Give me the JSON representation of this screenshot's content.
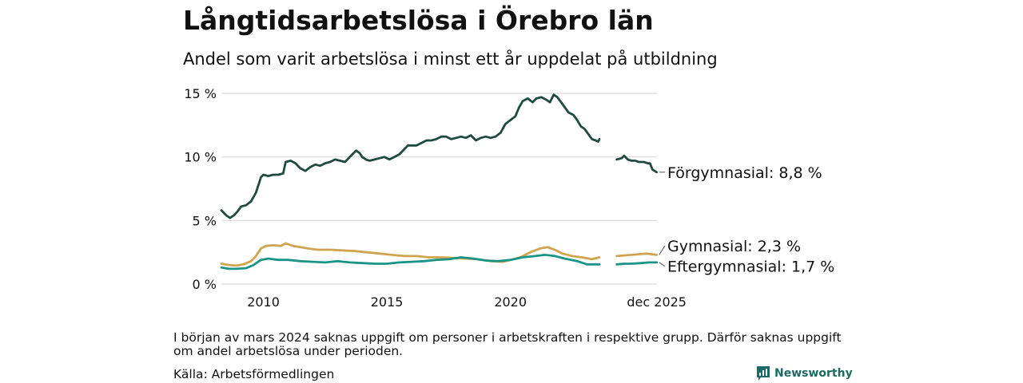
{
  "title": "Långtidsarbetslösa i Örebro län",
  "subtitle": "Andel som varit arbetslösa i minst ett år uppdelat på utbildning",
  "note": "I början av mars 2024 saknas uppgift om personer i arbetskraften i respektive grupp. Därför saknas uppgift om andel arbetslösa under perioden.",
  "source": "Källa: Arbetsförmedlingen",
  "brand": "Newsworthy",
  "colors": {
    "forgymnasial": "#1f4a40",
    "gymnasial": "#d0a350",
    "eftergymnasial": "#1a9486",
    "grid": "#d9d9d9"
  },
  "chart_data": {
    "type": "line",
    "ylim": [
      0,
      15
    ],
    "xlim": [
      2008.3,
      2025.93
    ],
    "y_ticks": [
      0,
      5,
      10,
      15
    ],
    "y_tick_labels": [
      "0 %",
      "5 %",
      "10 %",
      "15 %"
    ],
    "x_ticks": [
      2010,
      2015,
      2020,
      2025.92
    ],
    "x_tick_labels": [
      "2010",
      "2015",
      "2020",
      "dec 2025"
    ],
    "gap": [
      2024.05,
      2024.3
    ],
    "series": [
      {
        "key": "forgymnasial",
        "name": "Förgymnasial",
        "end_label": "Förgymnasial: 8,8 %",
        "points": [
          [
            2008.3,
            5.8
          ],
          [
            2008.5,
            5.4
          ],
          [
            2008.65,
            5.2
          ],
          [
            2008.8,
            5.4
          ],
          [
            2008.95,
            5.7
          ],
          [
            2009.1,
            6.1
          ],
          [
            2009.3,
            6.2
          ],
          [
            2009.5,
            6.5
          ],
          [
            2009.7,
            7.2
          ],
          [
            2009.8,
            7.8
          ],
          [
            2009.9,
            8.4
          ],
          [
            2010.0,
            8.6
          ],
          [
            2010.2,
            8.5
          ],
          [
            2010.4,
            8.6
          ],
          [
            2010.6,
            8.6
          ],
          [
            2010.8,
            8.7
          ],
          [
            2010.9,
            9.6
          ],
          [
            2011.1,
            9.7
          ],
          [
            2011.3,
            9.5
          ],
          [
            2011.5,
            9.1
          ],
          [
            2011.7,
            8.9
          ],
          [
            2011.9,
            9.2
          ],
          [
            2012.1,
            9.4
          ],
          [
            2012.3,
            9.3
          ],
          [
            2012.5,
            9.5
          ],
          [
            2012.7,
            9.6
          ],
          [
            2012.9,
            9.8
          ],
          [
            2013.1,
            9.7
          ],
          [
            2013.3,
            9.6
          ],
          [
            2013.5,
            10.0
          ],
          [
            2013.6,
            10.2
          ],
          [
            2013.75,
            10.5
          ],
          [
            2013.9,
            10.3
          ],
          [
            2014.0,
            10.0
          ],
          [
            2014.15,
            9.8
          ],
          [
            2014.3,
            9.7
          ],
          [
            2014.5,
            9.8
          ],
          [
            2014.7,
            9.9
          ],
          [
            2014.9,
            10.0
          ],
          [
            2015.1,
            9.8
          ],
          [
            2015.3,
            10.0
          ],
          [
            2015.5,
            10.2
          ],
          [
            2015.7,
            10.6
          ],
          [
            2015.85,
            10.9
          ],
          [
            2016.0,
            10.9
          ],
          [
            2016.2,
            10.9
          ],
          [
            2016.4,
            11.1
          ],
          [
            2016.6,
            11.3
          ],
          [
            2016.8,
            11.3
          ],
          [
            2017.0,
            11.4
          ],
          [
            2017.2,
            11.6
          ],
          [
            2017.4,
            11.6
          ],
          [
            2017.6,
            11.4
          ],
          [
            2017.8,
            11.5
          ],
          [
            2018.0,
            11.6
          ],
          [
            2018.2,
            11.5
          ],
          [
            2018.4,
            11.7
          ],
          [
            2018.6,
            11.3
          ],
          [
            2018.8,
            11.5
          ],
          [
            2019.0,
            11.6
          ],
          [
            2019.2,
            11.5
          ],
          [
            2019.4,
            11.6
          ],
          [
            2019.6,
            11.9
          ],
          [
            2019.8,
            12.6
          ],
          [
            2020.0,
            12.9
          ],
          [
            2020.2,
            13.2
          ],
          [
            2020.35,
            13.9
          ],
          [
            2020.5,
            14.4
          ],
          [
            2020.7,
            14.6
          ],
          [
            2020.9,
            14.3
          ],
          [
            2021.05,
            14.6
          ],
          [
            2021.25,
            14.7
          ],
          [
            2021.45,
            14.5
          ],
          [
            2021.6,
            14.3
          ],
          [
            2021.75,
            14.9
          ],
          [
            2021.9,
            14.7
          ],
          [
            2022.05,
            14.3
          ],
          [
            2022.2,
            13.9
          ],
          [
            2022.35,
            13.5
          ],
          [
            2022.55,
            13.3
          ],
          [
            2022.7,
            12.9
          ],
          [
            2022.85,
            12.4
          ],
          [
            2023.0,
            12.2
          ],
          [
            2023.15,
            11.8
          ],
          [
            2023.3,
            11.4
          ],
          [
            2023.45,
            11.3
          ],
          [
            2023.55,
            11.2
          ],
          [
            2023.6,
            11.4
          ],
          null,
          [
            2024.3,
            9.8
          ],
          [
            2024.5,
            9.9
          ],
          [
            2024.6,
            10.1
          ],
          [
            2024.75,
            9.8
          ],
          [
            2024.9,
            9.7
          ],
          [
            2025.05,
            9.7
          ],
          [
            2025.2,
            9.6
          ],
          [
            2025.4,
            9.6
          ],
          [
            2025.55,
            9.5
          ],
          [
            2025.65,
            9.5
          ],
          [
            2025.75,
            9.0
          ],
          [
            2025.92,
            8.8
          ]
        ]
      },
      {
        "key": "gymnasial",
        "name": "Gymnasial",
        "end_label": "Gymnasial: 2,3 %",
        "points": [
          [
            2008.3,
            1.6
          ],
          [
            2008.6,
            1.5
          ],
          [
            2008.9,
            1.45
          ],
          [
            2009.2,
            1.55
          ],
          [
            2009.5,
            1.8
          ],
          [
            2009.7,
            2.2
          ],
          [
            2009.9,
            2.8
          ],
          [
            2010.1,
            3.0
          ],
          [
            2010.4,
            3.05
          ],
          [
            2010.7,
            3.0
          ],
          [
            2010.9,
            3.2
          ],
          [
            2011.2,
            3.0
          ],
          [
            2011.5,
            2.9
          ],
          [
            2011.8,
            2.8
          ],
          [
            2012.2,
            2.7
          ],
          [
            2012.7,
            2.7
          ],
          [
            2013.2,
            2.65
          ],
          [
            2013.7,
            2.6
          ],
          [
            2014.2,
            2.5
          ],
          [
            2014.7,
            2.4
          ],
          [
            2015.2,
            2.3
          ],
          [
            2015.7,
            2.2
          ],
          [
            2016.2,
            2.2
          ],
          [
            2016.7,
            2.1
          ],
          [
            2017.2,
            2.1
          ],
          [
            2017.7,
            2.05
          ],
          [
            2018.2,
            2.0
          ],
          [
            2018.7,
            1.95
          ],
          [
            2019.2,
            1.8
          ],
          [
            2019.7,
            1.75
          ],
          [
            2020.0,
            1.9
          ],
          [
            2020.4,
            2.1
          ],
          [
            2020.8,
            2.5
          ],
          [
            2021.2,
            2.8
          ],
          [
            2021.5,
            2.9
          ],
          [
            2021.8,
            2.7
          ],
          [
            2022.1,
            2.4
          ],
          [
            2022.5,
            2.2
          ],
          [
            2022.9,
            2.1
          ],
          [
            2023.3,
            1.95
          ],
          [
            2023.6,
            2.1
          ],
          null,
          [
            2024.3,
            2.2
          ],
          [
            2024.6,
            2.25
          ],
          [
            2024.9,
            2.3
          ],
          [
            2025.2,
            2.35
          ],
          [
            2025.5,
            2.4
          ],
          [
            2025.92,
            2.3
          ]
        ]
      },
      {
        "key": "eftergymnasial",
        "name": "Eftergymnasial",
        "end_label": "Eftergymnasial: 1,7 %",
        "points": [
          [
            2008.3,
            1.3
          ],
          [
            2008.6,
            1.2
          ],
          [
            2008.9,
            1.2
          ],
          [
            2009.3,
            1.25
          ],
          [
            2009.6,
            1.5
          ],
          [
            2009.9,
            1.9
          ],
          [
            2010.2,
            2.0
          ],
          [
            2010.6,
            1.9
          ],
          [
            2011.0,
            1.9
          ],
          [
            2011.5,
            1.8
          ],
          [
            2012.0,
            1.75
          ],
          [
            2012.5,
            1.7
          ],
          [
            2013.0,
            1.8
          ],
          [
            2013.5,
            1.7
          ],
          [
            2014.0,
            1.65
          ],
          [
            2014.5,
            1.6
          ],
          [
            2015.0,
            1.6
          ],
          [
            2015.5,
            1.7
          ],
          [
            2016.0,
            1.75
          ],
          [
            2016.5,
            1.8
          ],
          [
            2017.0,
            1.9
          ],
          [
            2017.5,
            1.95
          ],
          [
            2018.0,
            2.1
          ],
          [
            2018.5,
            2.0
          ],
          [
            2019.0,
            1.85
          ],
          [
            2019.5,
            1.8
          ],
          [
            2020.0,
            1.9
          ],
          [
            2020.5,
            2.1
          ],
          [
            2021.0,
            2.2
          ],
          [
            2021.4,
            2.3
          ],
          [
            2021.8,
            2.2
          ],
          [
            2022.2,
            2.0
          ],
          [
            2022.7,
            1.8
          ],
          [
            2023.1,
            1.55
          ],
          [
            2023.6,
            1.55
          ],
          null,
          [
            2024.3,
            1.55
          ],
          [
            2024.6,
            1.6
          ],
          [
            2024.9,
            1.6
          ],
          [
            2025.3,
            1.65
          ],
          [
            2025.6,
            1.7
          ],
          [
            2025.92,
            1.7
          ]
        ]
      }
    ]
  }
}
